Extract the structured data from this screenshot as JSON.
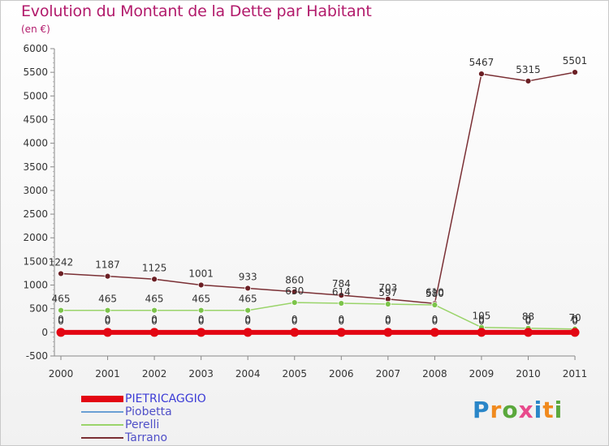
{
  "header": {
    "title": "Evolution du Montant de la Dette par Habitant",
    "subtitle": "(en €)"
  },
  "brand": {
    "logo_text": "Proxiti"
  },
  "colors": {
    "title": "#b21a6b",
    "axis": "#333333",
    "grid_tick": "#888888"
  },
  "chart_data": {
    "type": "line",
    "title": "Evolution du Montant de la Dette par Habitant",
    "subtitle": "(en €)",
    "xlabel": "",
    "ylabel": "",
    "ylim": [
      -500,
      6000
    ],
    "yticks": [
      -500,
      0,
      500,
      1000,
      1500,
      2000,
      2500,
      3000,
      3500,
      4000,
      4500,
      5000,
      5500,
      6000
    ],
    "x": [
      "2000",
      "2001",
      "2002",
      "2003",
      "2004",
      "2005",
      "2006",
      "2007",
      "2008",
      "2009",
      "2010",
      "2011"
    ],
    "grid": false,
    "legend_position": "bottom-left",
    "series": [
      {
        "name": "PIETRICAGGIO",
        "color": "#e30613",
        "values": [
          0,
          0,
          0,
          0,
          0,
          0,
          0,
          0,
          0,
          0,
          0,
          0
        ],
        "labels": [
          "0",
          "0",
          "0",
          "0",
          "0",
          "0",
          "0",
          "0",
          "0",
          "0",
          "0",
          "0"
        ]
      },
      {
        "name": "Piobetta",
        "color": "#6a9fd4",
        "values": [
          0,
          0,
          0,
          0,
          0,
          0,
          0,
          0,
          0,
          0,
          0,
          0
        ],
        "labels": [
          "0",
          "0",
          "0",
          "0",
          "0",
          "0",
          "0",
          "0",
          "0",
          "0",
          "0",
          "0"
        ]
      },
      {
        "name": "Perelli",
        "color": "#9ad46a",
        "values": [
          465,
          465,
          465,
          465,
          465,
          630,
          614,
          597,
          580,
          105,
          88,
          70
        ],
        "labels": [
          "465",
          "465",
          "465",
          "465",
          "465",
          "630",
          "614",
          "597",
          "580",
          "105",
          "88",
          "70"
        ]
      },
      {
        "name": "Tarrano",
        "color": "#7a2f34",
        "values": [
          1242,
          1187,
          1125,
          1001,
          933,
          860,
          784,
          703,
          610,
          5467,
          5315,
          5501
        ],
        "labels": [
          "1242",
          "1187",
          "1125",
          "1001",
          "933",
          "860",
          "784",
          "703",
          "610",
          "5467",
          "5315",
          "5501"
        ]
      }
    ]
  }
}
